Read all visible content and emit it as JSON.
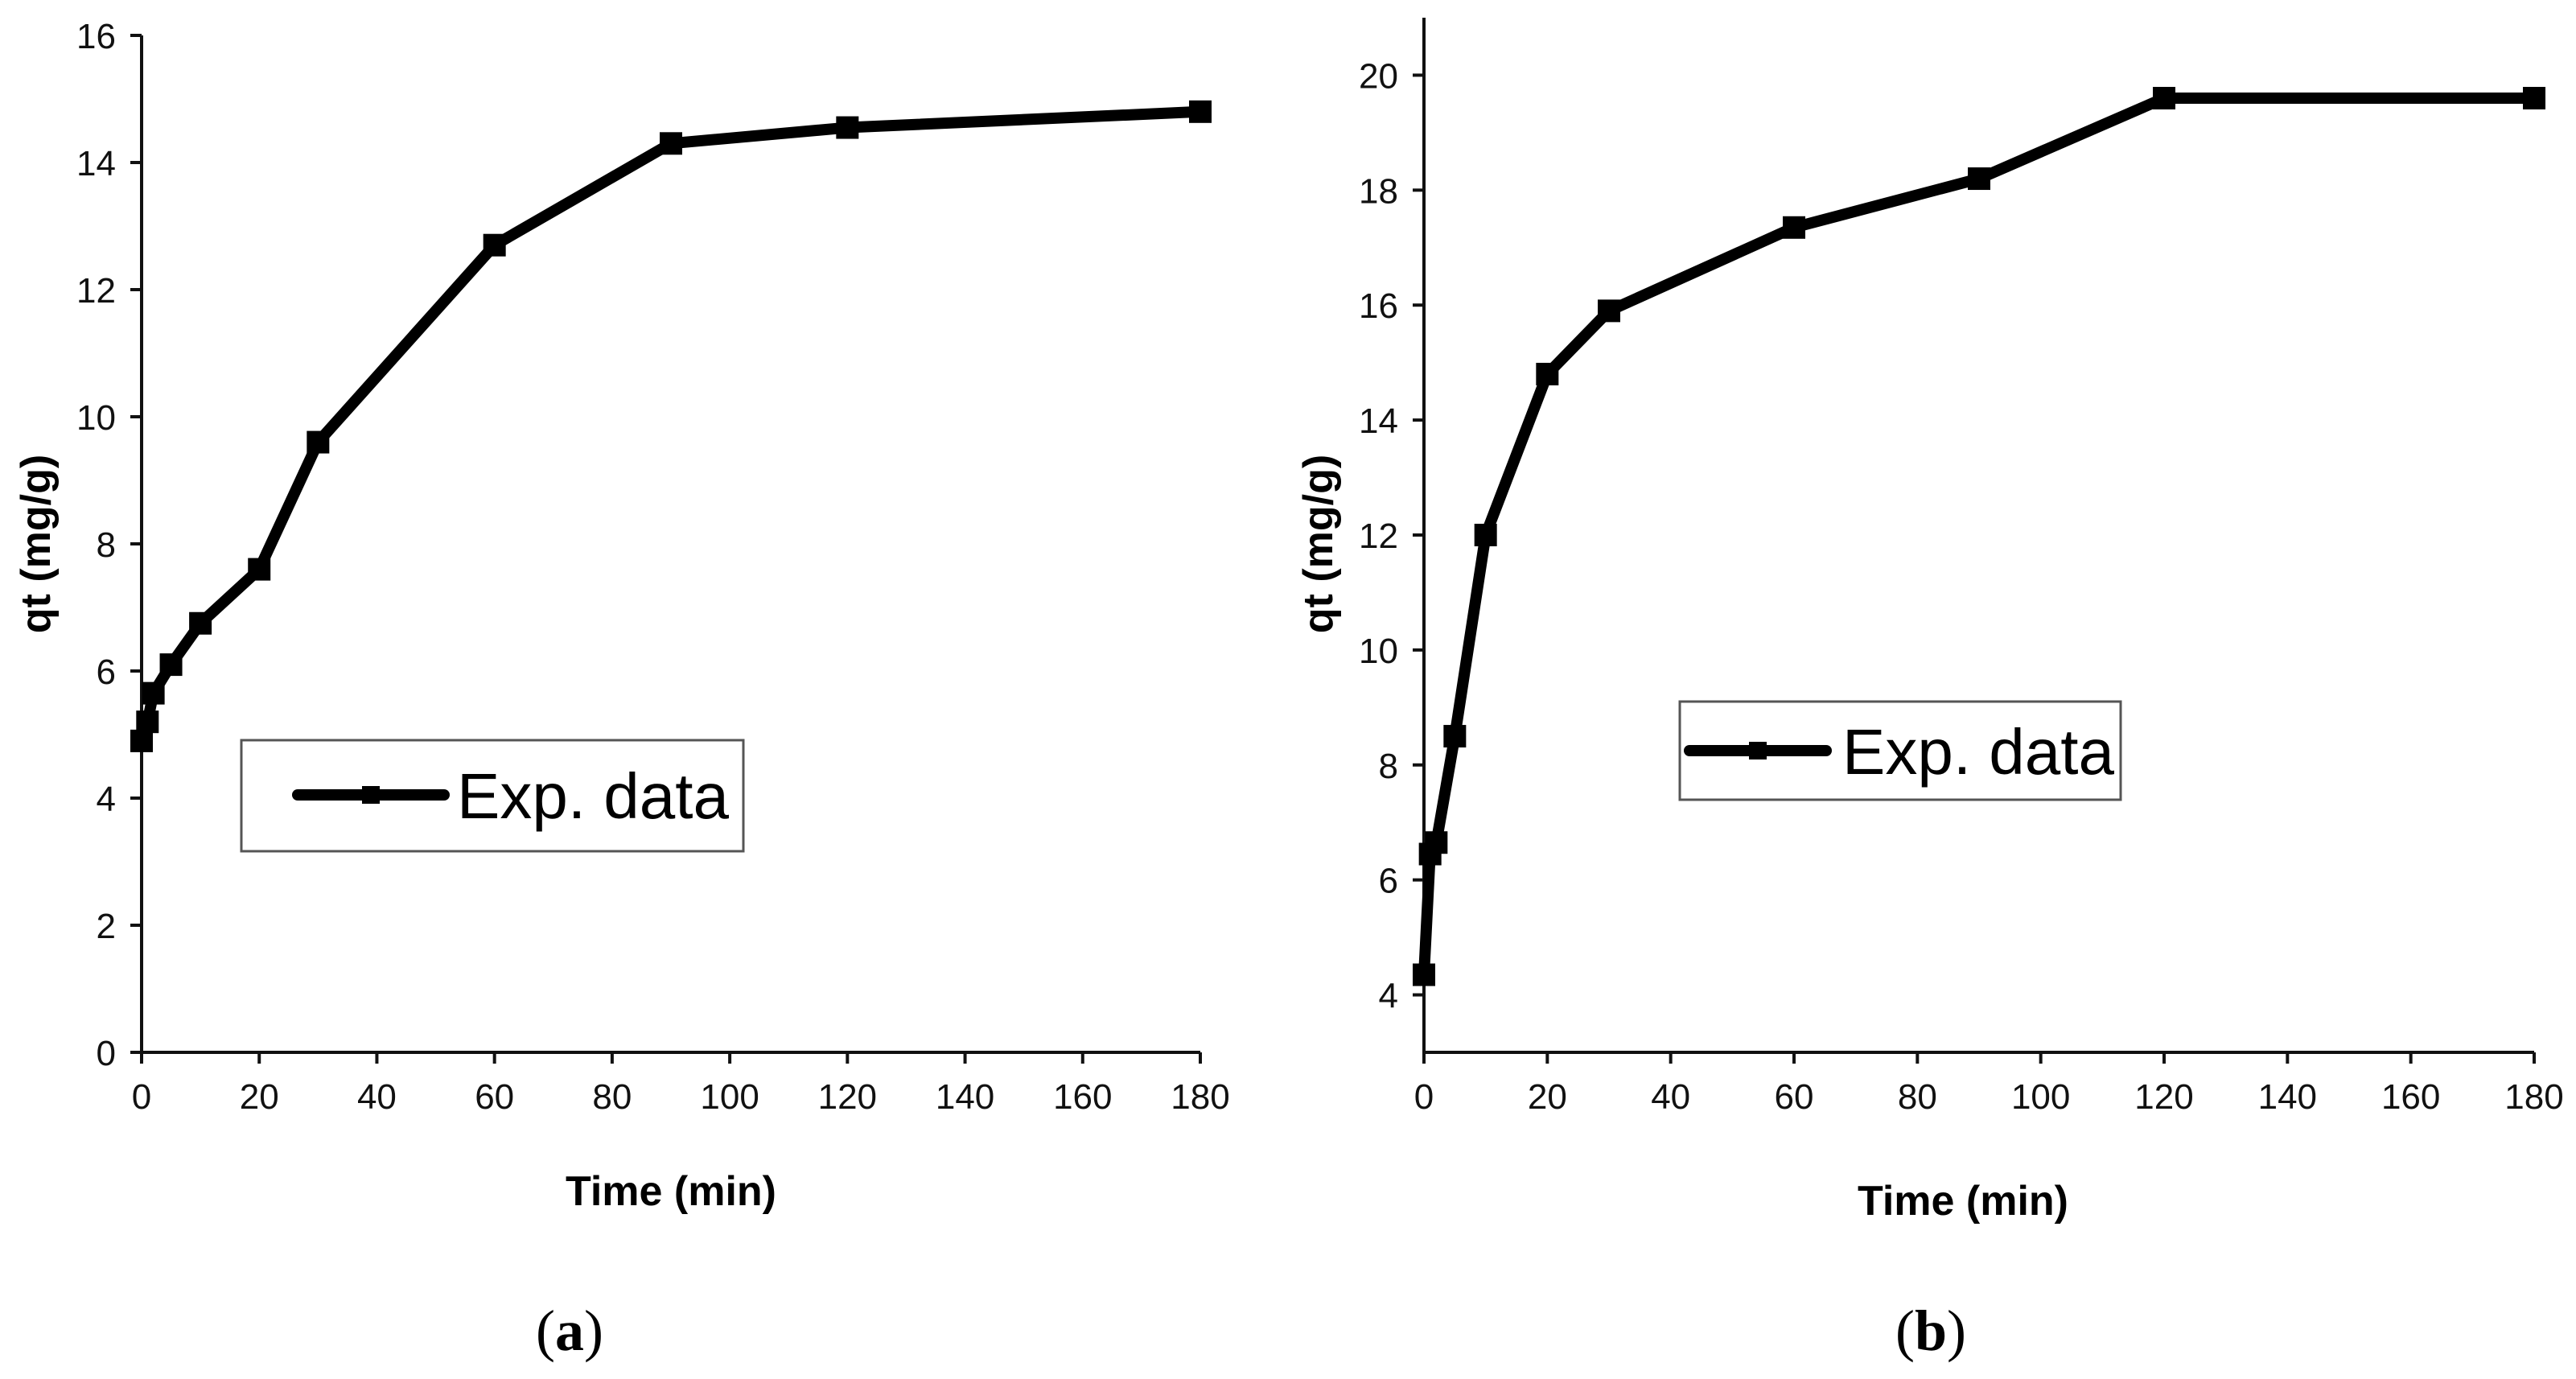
{
  "chart_data": [
    {
      "type": "line",
      "panel": "a",
      "caption": {
        "open": "(",
        "letter": "a",
        "close": ")"
      },
      "xlabel": "Time (min)",
      "ylabel": "qt (mg/g)",
      "xlim": [
        0,
        180
      ],
      "ylim": [
        0,
        16
      ],
      "xticks": [
        0,
        20,
        40,
        60,
        80,
        100,
        120,
        140,
        160,
        180
      ],
      "yticks": [
        0,
        2,
        4,
        6,
        8,
        10,
        12,
        14,
        16
      ],
      "legend": {
        "label": "Exp. data",
        "placement": "center-left"
      },
      "series": [
        {
          "name": "Exp. data",
          "x": [
            0,
            1,
            2,
            5,
            10,
            20,
            30,
            60,
            90,
            120,
            180
          ],
          "y": [
            4.9,
            5.2,
            5.65,
            6.1,
            6.75,
            7.6,
            9.6,
            12.7,
            14.3,
            14.55,
            14.8
          ]
        }
      ]
    },
    {
      "type": "line",
      "panel": "b",
      "caption": {
        "open": "(",
        "letter": "b",
        "close": ")"
      },
      "xlabel": "Time (min)",
      "ylabel": "qt (mg/g)",
      "xlim": [
        0,
        180
      ],
      "ylim": [
        3,
        21
      ],
      "xticks": [
        0,
        20,
        40,
        60,
        80,
        100,
        120,
        140,
        160,
        180
      ],
      "yticks": [
        4,
        6,
        8,
        10,
        12,
        14,
        16,
        18,
        20
      ],
      "legend": {
        "label": "Exp. data",
        "placement": "center"
      },
      "series": [
        {
          "name": "Exp. data",
          "x": [
            0,
            1,
            2,
            5,
            10,
            20,
            30,
            60,
            90,
            120,
            180
          ],
          "y": [
            4.35,
            6.45,
            6.65,
            8.5,
            12.0,
            14.8,
            15.9,
            17.35,
            18.2,
            19.6,
            19.6
          ]
        }
      ]
    }
  ]
}
